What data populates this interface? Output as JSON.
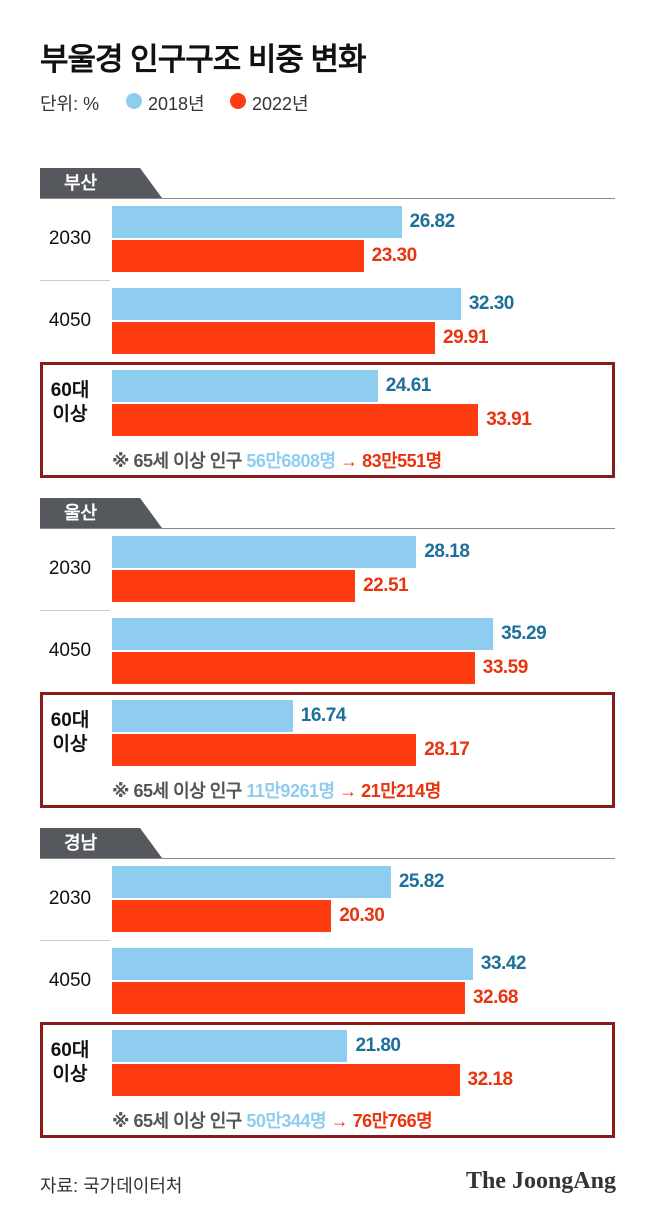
{
  "title": "부울경 인구구조 비중 변화",
  "unit": "단위: %",
  "source": "자료: 국가데이터처",
  "logo": "The JoongAng",
  "chart_data": [
    {
      "type": "bar",
      "orientation": "horizontal",
      "title": "부산",
      "categories": [
        "2030",
        "4050",
        "60대 이상"
      ],
      "xlim": [
        0,
        50
      ],
      "series": [
        {
          "name": "2018년",
          "color": "#8ecdf0",
          "label_color": "#1f6f9c",
          "values": [
            26.82,
            32.3,
            24.61
          ],
          "value_labels": [
            "26.82",
            "32.30",
            "24.61"
          ]
        },
        {
          "name": "2022년",
          "color": "#ff3b12",
          "label_color": "#e8340f",
          "values": [
            23.3,
            29.91,
            33.91
          ],
          "value_labels": [
            "23.30",
            "29.91",
            "33.91"
          ]
        }
      ],
      "note": {
        "text": "※ 65세 이상 인구",
        "from": "56만6808명",
        "arrow": "→",
        "to": "83만551명"
      }
    },
    {
      "type": "bar",
      "orientation": "horizontal",
      "title": "울산",
      "categories": [
        "2030",
        "4050",
        "60대 이상"
      ],
      "xlim": [
        0,
        50
      ],
      "series": [
        {
          "name": "2018년",
          "color": "#8ecdf0",
          "label_color": "#1f6f9c",
          "values": [
            28.18,
            35.29,
            16.74
          ],
          "value_labels": [
            "28.18",
            "35.29",
            "16.74"
          ]
        },
        {
          "name": "2022년",
          "color": "#ff3b12",
          "label_color": "#e8340f",
          "values": [
            22.51,
            33.59,
            28.17
          ],
          "value_labels": [
            "22.51",
            "33.59",
            "28.17"
          ]
        }
      ],
      "note": {
        "text": "※ 65세 이상 인구",
        "from": "11만9261명",
        "arrow": "→",
        "to": "21만214명"
      }
    },
    {
      "type": "bar",
      "orientation": "horizontal",
      "title": "경남",
      "categories": [
        "2030",
        "4050",
        "60대 이상"
      ],
      "xlim": [
        0,
        50
      ],
      "series": [
        {
          "name": "2018년",
          "color": "#8ecdf0",
          "label_color": "#1f6f9c",
          "values": [
            25.82,
            33.42,
            21.8
          ],
          "value_labels": [
            "25.82",
            "33.42",
            "21.80"
          ]
        },
        {
          "name": "2022년",
          "color": "#ff3b12",
          "label_color": "#e8340f",
          "values": [
            20.3,
            32.68,
            32.18
          ],
          "value_labels": [
            "20.30",
            "32.68",
            "32.18"
          ]
        }
      ],
      "note": {
        "text": "※ 65세 이상 인구",
        "from": "50만344명",
        "arrow": "→",
        "to": "76만766명"
      }
    }
  ]
}
